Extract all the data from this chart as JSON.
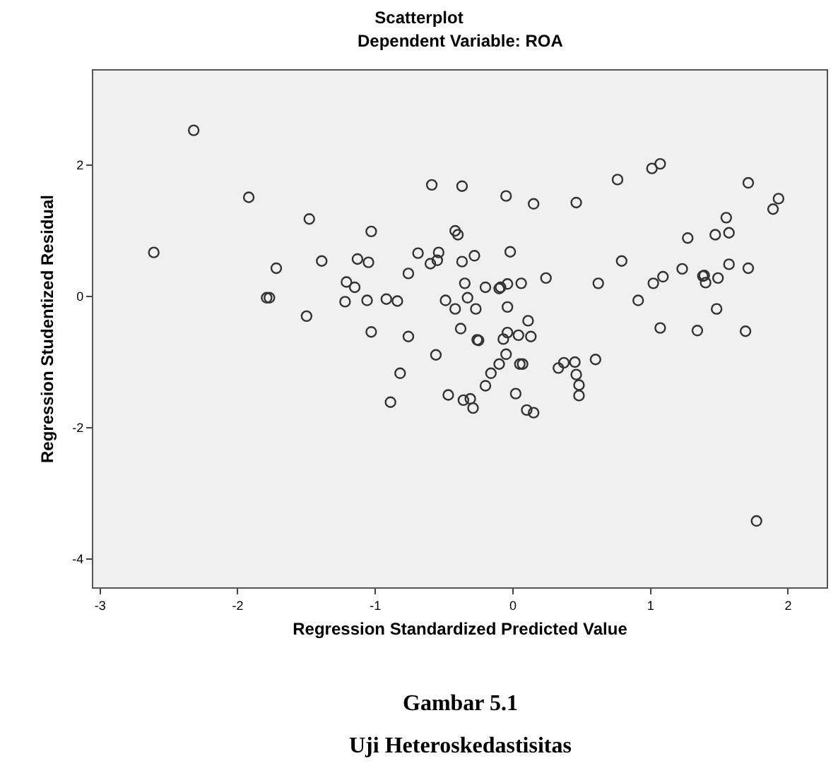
{
  "chart_data": {
    "type": "scatter",
    "title": "Scatterplot",
    "subtitle": "Dependent Variable: ROA",
    "xlabel": "Regression Standardized Predicted Value",
    "ylabel": "Regression Studentized Residual",
    "annotations": [
      "Gambar 5.1",
      "Uji Heteroskedastisitas"
    ],
    "xlim": [
      -3.05,
      2.28
    ],
    "ylim": [
      -4.43,
      3.44
    ],
    "xticks": [
      -3,
      -2,
      -1,
      0,
      1,
      2
    ],
    "yticks": [
      -4,
      -2,
      0,
      2
    ],
    "grid": false,
    "marker": "circle",
    "series": [
      {
        "color": "#333333",
        "x": [
          -2.32,
          -1.92,
          -1.48,
          -2.61,
          -1.03,
          -0.59,
          -0.37,
          -0.42,
          -0.4,
          -1.72,
          -1.39,
          -1.13,
          -1.05,
          -0.69,
          -0.54,
          -0.6,
          -0.55,
          -0.37,
          -0.76,
          -1.21,
          -1.15,
          -1.79,
          -1.77,
          -1.22,
          -1.06,
          -0.92,
          -0.84,
          -0.49,
          -0.42,
          -1.5,
          -1.03,
          -0.76,
          -0.38,
          -0.56,
          -0.82,
          -0.47,
          -0.89,
          -0.36,
          -0.28,
          -0.35,
          -0.33,
          -0.27,
          -0.2,
          -0.1,
          -0.09,
          -0.04,
          0.06,
          -0.02,
          -0.05,
          0.15,
          0.46,
          0.24,
          -0.04,
          0.11,
          -0.04,
          -0.07,
          0.04,
          0.13,
          -0.26,
          -0.25,
          -0.05,
          -0.1,
          0.05,
          0.07,
          -0.16,
          -0.2,
          -0.31,
          -0.29,
          0.02,
          0.1,
          0.15,
          0.33,
          0.37,
          0.45,
          0.46,
          0.48,
          0.48,
          0.6,
          0.62,
          0.76,
          0.79,
          0.91,
          1.01,
          1.07,
          1.02,
          1.09,
          1.07,
          1.23,
          1.27,
          1.34,
          1.38,
          1.39,
          1.4,
          1.47,
          1.49,
          1.48,
          1.55,
          1.57,
          1.57,
          1.71,
          1.71,
          1.69,
          1.89,
          1.93,
          1.77
        ],
        "values": [
          2.53,
          1.51,
          1.18,
          0.67,
          0.99,
          1.7,
          1.68,
          1.0,
          0.94,
          0.43,
          0.54,
          0.57,
          0.52,
          0.66,
          0.67,
          0.5,
          0.55,
          0.53,
          0.35,
          0.22,
          0.14,
          -0.02,
          -0.02,
          -0.08,
          -0.06,
          -0.04,
          -0.07,
          -0.06,
          -0.19,
          -0.3,
          -0.54,
          -0.61,
          -0.49,
          -0.89,
          -1.17,
          -1.5,
          -1.61,
          -1.58,
          0.62,
          0.2,
          -0.02,
          -0.19,
          0.14,
          0.12,
          0.14,
          0.19,
          0.2,
          0.68,
          1.53,
          1.41,
          1.43,
          0.28,
          -0.16,
          -0.37,
          -0.55,
          -0.65,
          -0.59,
          -0.61,
          -0.66,
          -0.67,
          -0.88,
          -1.03,
          -1.03,
          -1.03,
          -1.17,
          -1.36,
          -1.56,
          -1.7,
          -1.48,
          -1.73,
          -1.77,
          -1.09,
          -1.01,
          -1.0,
          -1.19,
          -1.35,
          -1.51,
          -0.96,
          0.2,
          1.78,
          0.54,
          -0.06,
          1.95,
          2.02,
          0.2,
          0.3,
          -0.48,
          0.42,
          0.89,
          -0.52,
          0.31,
          0.32,
          0.21,
          0.94,
          0.28,
          -0.19,
          1.2,
          0.97,
          0.49,
          1.73,
          0.43,
          -0.53,
          1.33,
          1.49,
          -3.42
        ]
      }
    ]
  }
}
